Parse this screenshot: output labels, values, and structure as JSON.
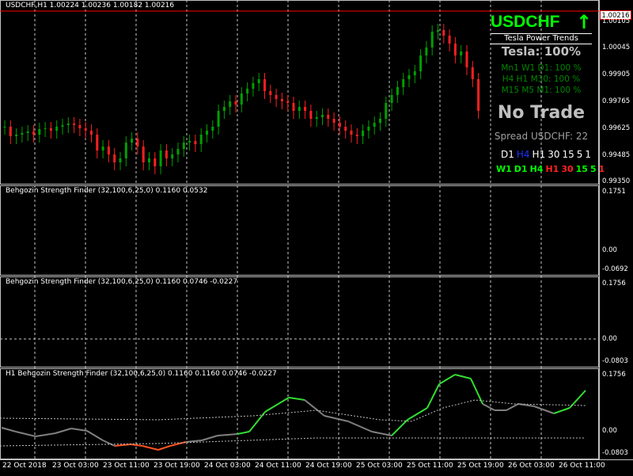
{
  "main_chart": {
    "header": "USDCHF,H1  1.00224 1.00236 1.00182 1.00216",
    "current_price": "1.00216",
    "price_ticks": [
      "1.00105",
      "1.00045",
      "0.99905",
      "0.99765",
      "0.99625",
      "0.99485",
      "0.99350"
    ]
  },
  "tesla_panel": {
    "symbol": "USDCHF",
    "trend_arrow": "↑",
    "title": "Tesla Power Trends",
    "score": "Tesla: 100%",
    "line1": "Mn1 W1 D1: 100 %",
    "line2": "H4 H1 M30: 100 %",
    "line3": "M15 M5 M1: 100 %",
    "signal": "No Trade",
    "spread": "Spread USDCHF: 22",
    "tf_row1": [
      {
        "t": "D1",
        "c": "#ffffff"
      },
      {
        "t": "H4",
        "c": "#1a33ff"
      },
      {
        "t": "H1",
        "c": "#ffffff"
      },
      {
        "t": "30",
        "c": "#ffffff"
      },
      {
        "t": "15",
        "c": "#ffffff"
      },
      {
        "t": "5",
        "c": "#ffffff"
      },
      {
        "t": "1",
        "c": "#ffffff"
      }
    ],
    "tf_row2": [
      {
        "t": "W1",
        "c": "#00ff00"
      },
      {
        "t": "D1",
        "c": "#00ff00"
      },
      {
        "t": "H4",
        "c": "#00ff00"
      },
      {
        "t": "H1",
        "c": "#ff2020"
      },
      {
        "t": "30",
        "c": "#ff2020"
      },
      {
        "t": "15",
        "c": "#00ff00"
      },
      {
        "t": "5",
        "c": "#00ff00"
      },
      {
        "t": "1",
        "c": "#ff2020"
      }
    ]
  },
  "sub1": {
    "label": "Behgozin Strength Finder (32,100,6,25,0) 0.1160 0.0532",
    "ticks": [
      "0.1751",
      "0.00",
      "-0.0692"
    ]
  },
  "sub2": {
    "label": "Behgozin Strength Finder (32,100,6,25,0) 0.1160 0.0746 -0.0227",
    "ticks": [
      "0.1756",
      "0.00",
      "-0.0803"
    ]
  },
  "sub3": {
    "label": "H1 Behgozin Strength Finder (32,100,6,25,0) 0.1160 0.1160 0.0746 -0.0227",
    "ticks": [
      "0.1756",
      "0.00",
      "-0.0803"
    ]
  },
  "time_axis": [
    "22 Oct 2018",
    "23 Oct 03:00",
    "23 Oct 11:00",
    "23 Oct 19:00",
    "24 Oct 03:00",
    "24 Oct 11:00",
    "24 Oct 19:00",
    "25 Oct 03:00",
    "25 Oct 11:00",
    "25 Oct 19:00",
    "26 Oct 03:00",
    "26 Oct 11:00"
  ],
  "colors": {
    "bull": "#00a000",
    "bear": "#ff2020",
    "strength_up": "#33dd33",
    "strength_down": "#ff5522",
    "strength_neutral": "#808080",
    "price_line": "#ff0000"
  }
}
